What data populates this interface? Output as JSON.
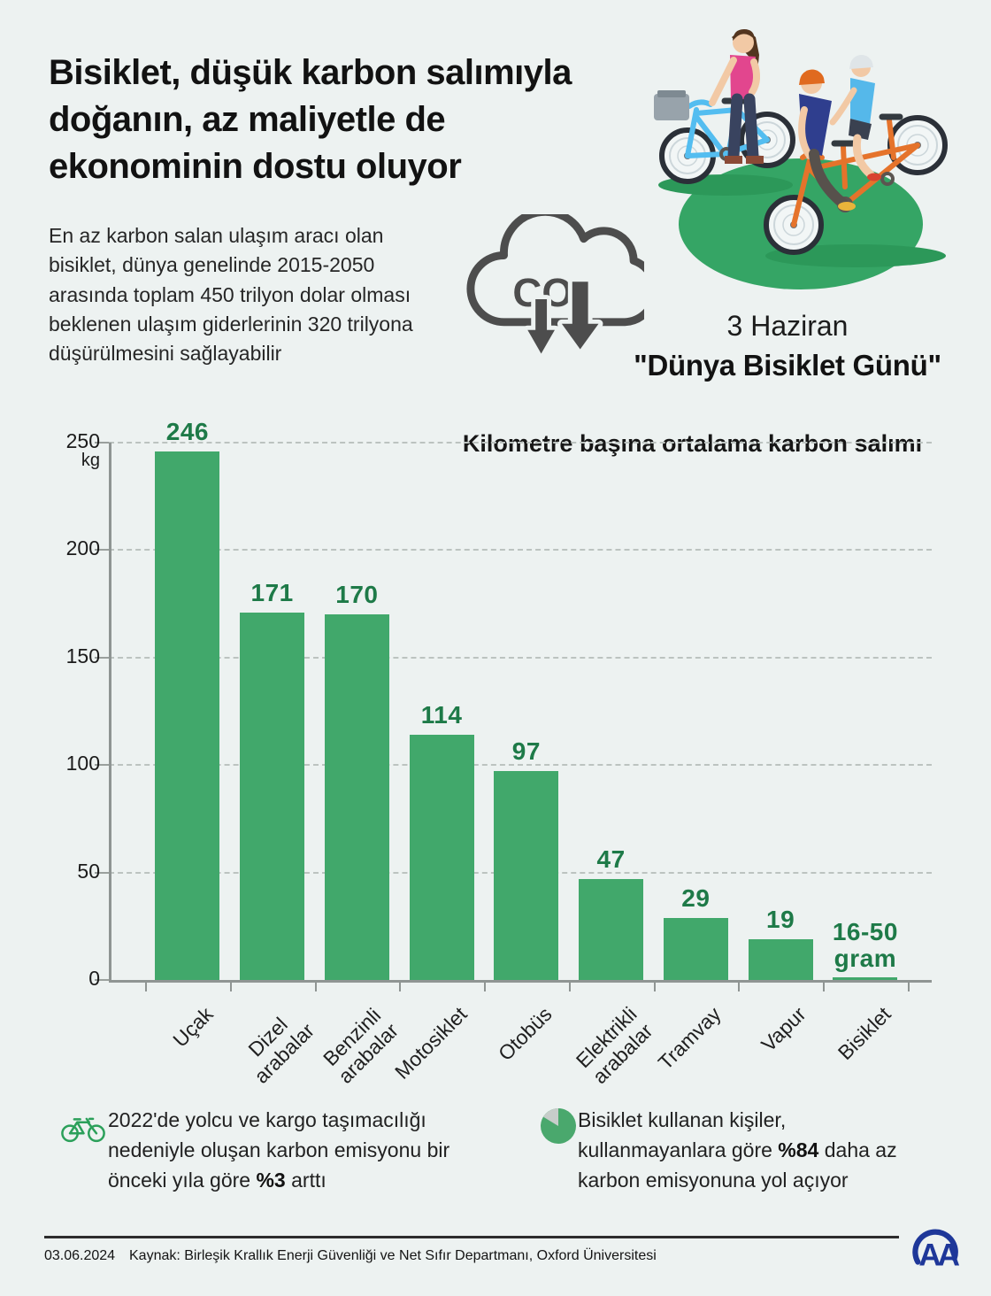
{
  "header": {
    "title": "Bisiklet, düşük karbon salımıyla\ndoğanın, az maliyetle de\nekonominin dostu oluyor",
    "intro": "En az karbon salan ulaşım aracı olan\nbisiklet, dünya genelinde 2015-2050\narasında toplam 450 trilyon dolar olması\nbeklenen ulaşım giderlerinin 320 trilyona\ndüşürülmesini sağlayabilir",
    "co2_label": {
      "main": "CO",
      "sub": "2"
    },
    "event_date": "3 Haziran",
    "event_name": "\"Dünya Bisiklet Günü\""
  },
  "chart_data": {
    "type": "bar",
    "title": "Kilometre başına ortalama karbon salımı",
    "unit": "kg",
    "ylim": [
      0,
      250
    ],
    "yticks": [
      250,
      200,
      150,
      100,
      50,
      0
    ],
    "grid": "dashed horizontal gridlines",
    "legend": "none",
    "bar_color": "#41a86b",
    "value_label_color": "#1e7a48",
    "categories": [
      "Uçak",
      "Dizel\narabalar",
      "Benzinli\narabalar",
      "Motosiklet",
      "Otobüs",
      "Elektrikli\narabalar",
      "Tramvay",
      "Vapur",
      "Bisiklet"
    ],
    "values": [
      246,
      171,
      170,
      114,
      97,
      47,
      29,
      19,
      0.05
    ],
    "value_labels": [
      "246",
      "171",
      "170",
      "114",
      "97",
      "47",
      "29",
      "19",
      "16-50\ngram"
    ]
  },
  "notes": [
    {
      "icon": "bicycle-icon",
      "pre": "2022'de yolcu ve kargo taşımacılığı nedeniyle oluşan karbon emisyonu bir önceki yıla göre ",
      "bold": "%3",
      "post": " arttı"
    },
    {
      "icon": "pie-chart-icon",
      "pre": "Bisiklet kullanan kişiler, kullanmayanlara göre ",
      "bold": "%84",
      "post": " daha az karbon emisyonuna yol açıyor"
    }
  ],
  "footer": {
    "date": "03.06.2024",
    "source": "Kaynak: Birleşik Krallık Enerji Güvenliği ve Net Sıfır Departmanı, Oxford Üniversitesi",
    "logo_text": "AA"
  },
  "colors": {
    "background": "#edf2f1",
    "bar_green": "#41a86b",
    "value_label_green": "#1e7a48",
    "illustration_green": "#35a565",
    "cloud_gray": "#4d4d4d",
    "logo_navy": "#1e3799"
  }
}
